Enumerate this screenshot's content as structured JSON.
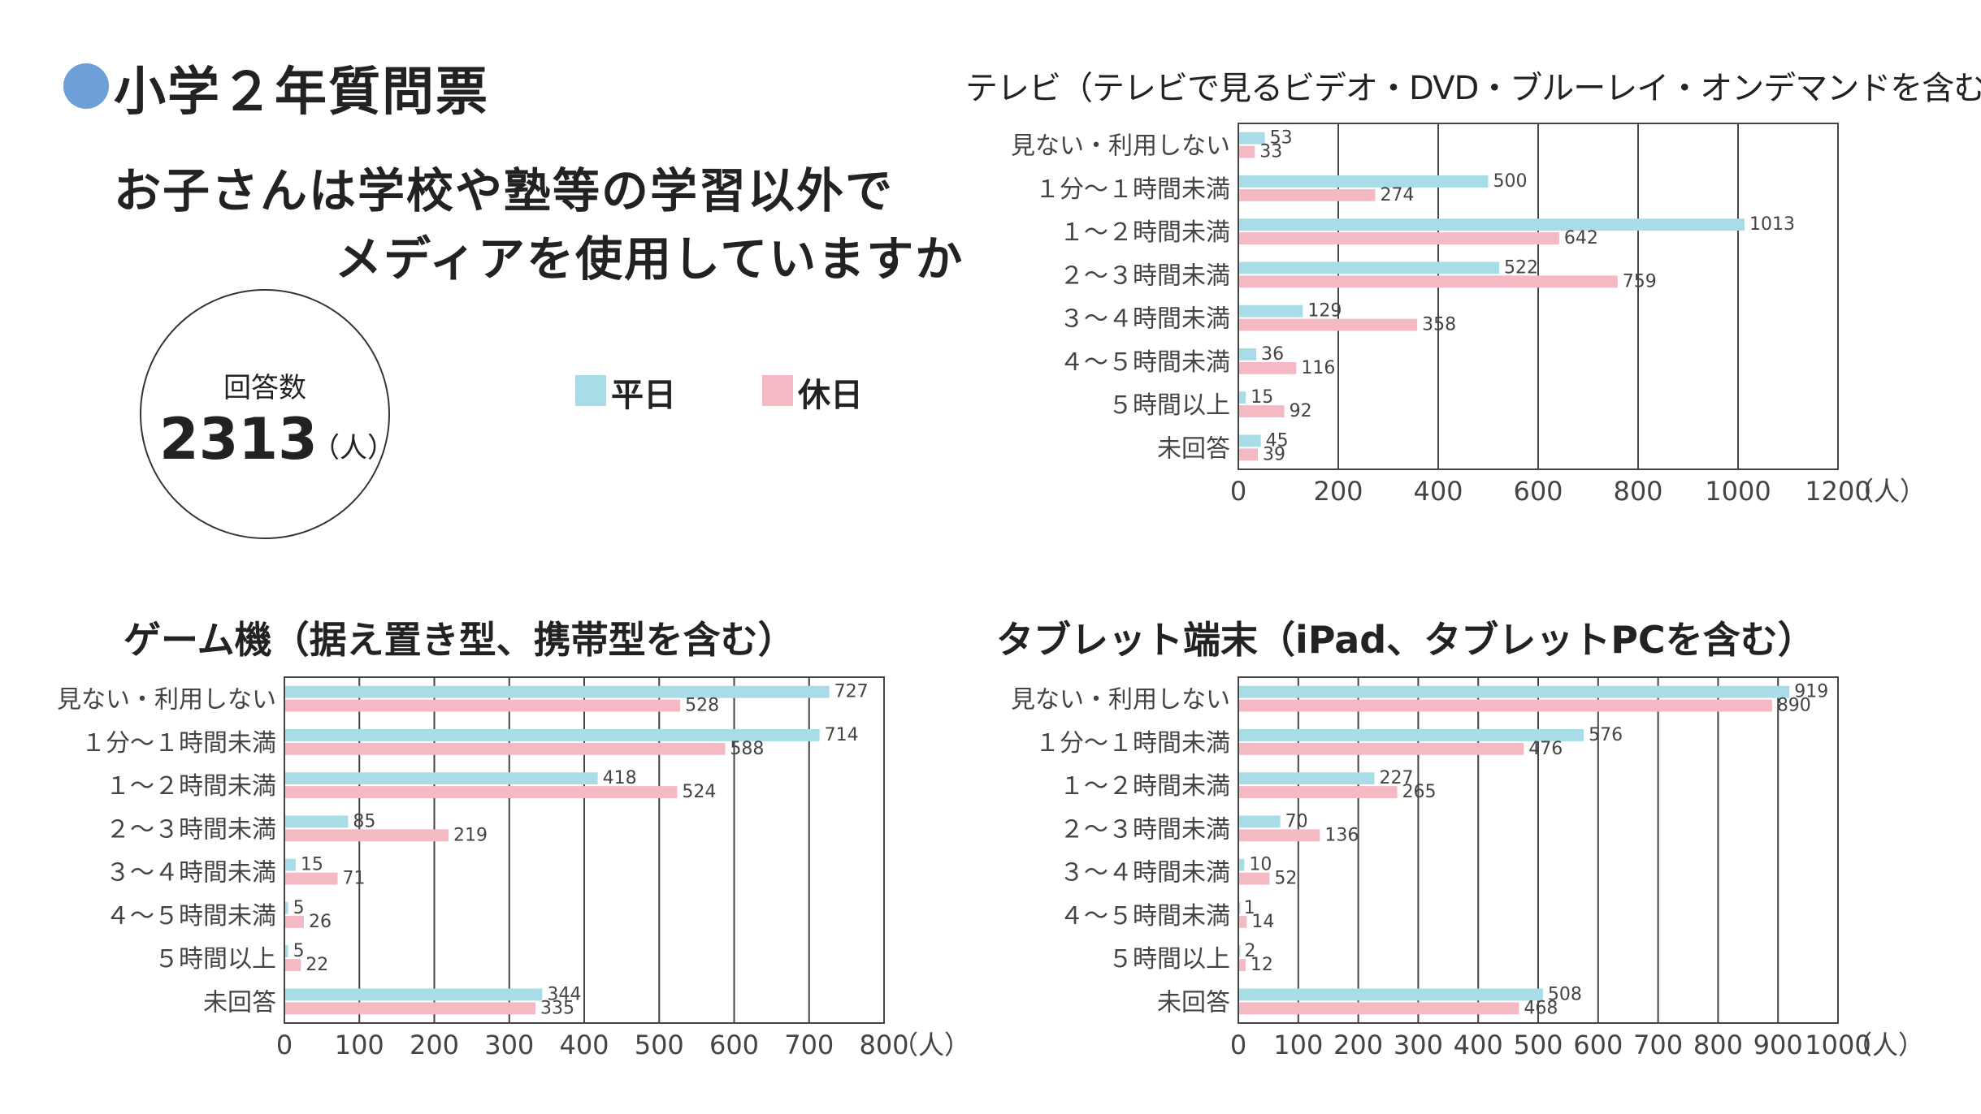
{
  "colors": {
    "weekday": "#a8dce6",
    "holiday": "#f4b9c3",
    "bullet": "#6f9fd8"
  },
  "title": "小学２年質問票",
  "question": {
    "line1": "お子さんは学校や塾等の学習以外で",
    "line2": "メディアを使用していますか"
  },
  "respondents": {
    "label": "回答数",
    "count": "2313",
    "unit": "（人）"
  },
  "legend": {
    "weekday": "平日",
    "holiday": "休日"
  },
  "chart_data": [
    {
      "type": "bar",
      "orientation": "horizontal",
      "title": "テレビ（テレビで見るビデオ・DVD・ブルーレイ・オンデマンドを含む）",
      "categories": [
        "見ない・利用しない",
        "１分～１時間未満",
        "１～２時間未満",
        "２～３時間未満",
        "３～４時間未満",
        "４～５時間未満",
        "５時間以上",
        "未回答"
      ],
      "series": [
        {
          "name": "平日",
          "values": [
            53,
            500,
            1013,
            522,
            129,
            36,
            15,
            45
          ]
        },
        {
          "name": "休日",
          "values": [
            33,
            274,
            642,
            759,
            358,
            116,
            92,
            39
          ]
        }
      ],
      "xlim": [
        0,
        1200
      ],
      "ticks": [
        0,
        200,
        400,
        600,
        800,
        1000,
        1200
      ],
      "unit": "（人）",
      "grid": true
    },
    {
      "type": "bar",
      "orientation": "horizontal",
      "title": "ゲーム機（据え置き型、携帯型を含む）",
      "categories": [
        "見ない・利用しない",
        "１分～１時間未満",
        "１～２時間未満",
        "２～３時間未満",
        "３～４時間未満",
        "４～５時間未満",
        "５時間以上",
        "未回答"
      ],
      "series": [
        {
          "name": "平日",
          "values": [
            727,
            714,
            418,
            85,
            15,
            5,
            5,
            344
          ]
        },
        {
          "name": "休日",
          "values": [
            528,
            588,
            524,
            219,
            71,
            26,
            22,
            335
          ]
        }
      ],
      "xlim": [
        0,
        800
      ],
      "ticks": [
        0,
        100,
        200,
        300,
        400,
        500,
        600,
        700,
        800
      ],
      "unit": "（人）",
      "grid": true
    },
    {
      "type": "bar",
      "orientation": "horizontal",
      "title": "タブレット端末（iPad、タブレットPCを含む）",
      "categories": [
        "見ない・利用しない",
        "１分～１時間未満",
        "１～２時間未満",
        "２～３時間未満",
        "３～４時間未満",
        "４～５時間未満",
        "５時間以上",
        "未回答"
      ],
      "series": [
        {
          "name": "平日",
          "values": [
            919,
            576,
            227,
            70,
            10,
            1,
            2,
            508
          ]
        },
        {
          "name": "休日",
          "values": [
            890,
            476,
            265,
            136,
            52,
            14,
            12,
            468
          ]
        }
      ],
      "xlim": [
        0,
        1000
      ],
      "ticks": [
        0,
        100,
        200,
        300,
        400,
        500,
        600,
        700,
        800,
        900,
        1000
      ],
      "unit": "（人）",
      "grid": true
    }
  ]
}
